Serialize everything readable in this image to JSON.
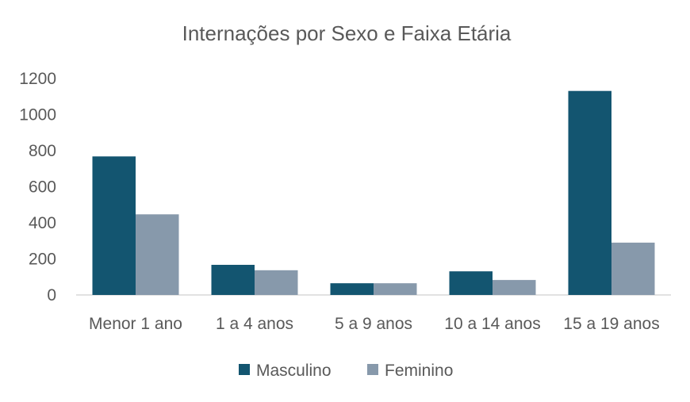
{
  "chart_data": {
    "type": "bar",
    "title": "Internações por Sexo e Faixa Etária",
    "xlabel": "",
    "ylabel": "",
    "categories": [
      "Menor 1 ano",
      "1 a 4 anos",
      "5 a 9 anos",
      "10 a 14 anos",
      "15 a 19 anos"
    ],
    "series": [
      {
        "name": "Masculino",
        "color": "#135570",
        "values": [
          768,
          167,
          65,
          131,
          1131
        ]
      },
      {
        "name": "Feminino",
        "color": "#8799AB",
        "values": [
          447,
          137,
          65,
          83,
          290
        ]
      }
    ],
    "ylim": [
      0,
      1200
    ],
    "yticks": [
      "0",
      "200",
      "400",
      "600",
      "800",
      "1000",
      "1200"
    ],
    "grid": false,
    "legend_position": "bottom"
  }
}
